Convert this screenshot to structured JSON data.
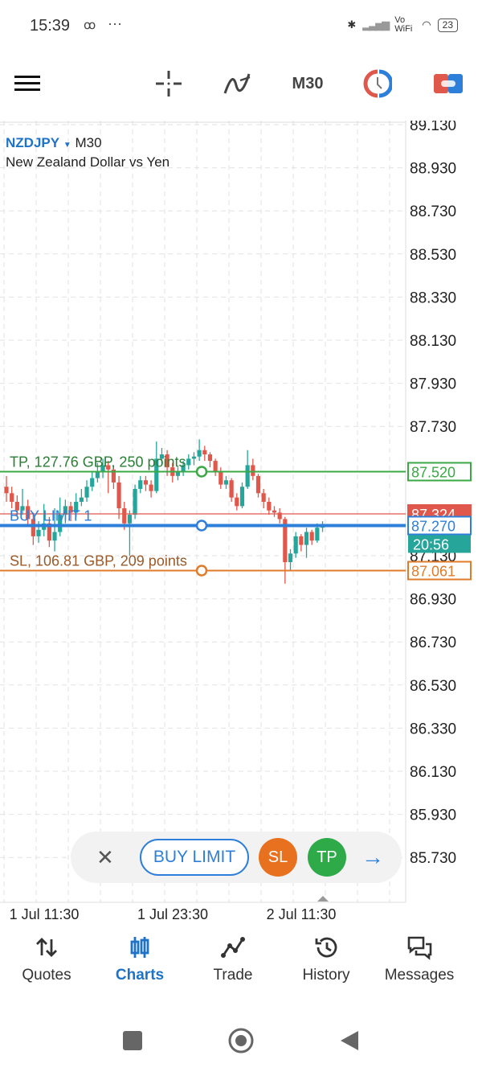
{
  "status_bar": {
    "time": "15:39",
    "voicemail": "ꝏ",
    "more": "···",
    "vowifi": "Vo WiFi",
    "battery": "23"
  },
  "toolbar": {
    "timeframe": "M30",
    "icons": [
      "menu-icon",
      "crosshair-icon",
      "indicators-icon",
      "timeframe",
      "clock-icon",
      "trade-toggle-icon"
    ]
  },
  "chart": {
    "symbol": "NZDJPY",
    "timeframe": "M30",
    "description": "New Zealand Dollar vs Yen",
    "price_ticks": [
      "89.130",
      "88.930",
      "88.730",
      "88.530",
      "88.330",
      "88.130",
      "87.930",
      "87.730",
      "87.130",
      "86.930",
      "86.730",
      "86.530",
      "86.330",
      "86.130",
      "85.930",
      "85.730"
    ],
    "time_ticks": [
      "1 Jul 11:30",
      "1 Jul 23:30",
      "2 Jul 11:30"
    ],
    "tp": {
      "label": "TP, 127.76 GBP, 250 points",
      "price": "87.520",
      "color": "#3aa845"
    },
    "bid": {
      "price": "87.324",
      "color": "#e0574c"
    },
    "order": {
      "label": "BUY LIMIT 1",
      "price": "87.270",
      "color": "#2d7fd9"
    },
    "countdown": "20:56",
    "sl": {
      "label": "SL, 106.81 GBP, 209 points",
      "price": "87.061",
      "color": "#e07b2a"
    },
    "colors": {
      "bull": "#26a69a",
      "bear": "#e0574c",
      "fractal": "#6a1fa8"
    }
  },
  "chart_data": {
    "type": "candlestick",
    "ylim": [
      85.6,
      89.15
    ],
    "candles_ohlc": [
      [
        87.45,
        87.5,
        87.38,
        87.42
      ],
      [
        87.42,
        87.45,
        87.35,
        87.38
      ],
      [
        87.38,
        87.41,
        87.31,
        87.34
      ],
      [
        87.34,
        87.44,
        87.32,
        87.36
      ],
      [
        87.36,
        87.39,
        87.27,
        87.3
      ],
      [
        87.3,
        87.33,
        87.18,
        87.22
      ],
      [
        87.22,
        87.29,
        87.19,
        87.25
      ],
      [
        87.25,
        87.37,
        87.22,
        87.28
      ],
      [
        87.28,
        87.31,
        87.17,
        87.2
      ],
      [
        87.2,
        87.35,
        87.15,
        87.24
      ],
      [
        87.24,
        87.4,
        87.22,
        87.32
      ],
      [
        87.32,
        87.39,
        87.28,
        87.36
      ],
      [
        87.36,
        87.38,
        87.29,
        87.33
      ],
      [
        87.33,
        87.42,
        87.31,
        87.38
      ],
      [
        87.38,
        87.44,
        87.36,
        87.4
      ],
      [
        87.4,
        87.48,
        87.38,
        87.45
      ],
      [
        87.45,
        87.52,
        87.43,
        87.49
      ],
      [
        87.49,
        87.56,
        87.47,
        87.52
      ],
      [
        87.52,
        87.58,
        87.49,
        87.55
      ],
      [
        87.55,
        87.57,
        87.42,
        87.53
      ],
      [
        87.53,
        87.55,
        87.44,
        87.47
      ],
      [
        87.47,
        87.5,
        87.3,
        87.35
      ],
      [
        87.35,
        87.38,
        87.25,
        87.28
      ],
      [
        87.28,
        87.34,
        87.13,
        87.32
      ],
      [
        87.32,
        87.46,
        87.3,
        87.44
      ],
      [
        87.44,
        87.5,
        87.42,
        87.48
      ],
      [
        87.48,
        87.5,
        87.43,
        87.46
      ],
      [
        87.46,
        87.48,
        87.4,
        87.43
      ],
      [
        87.43,
        87.66,
        87.42,
        87.58
      ],
      [
        87.58,
        87.63,
        87.55,
        87.6
      ],
      [
        87.6,
        87.62,
        87.5,
        87.54
      ],
      [
        87.54,
        87.56,
        87.47,
        87.5
      ],
      [
        87.5,
        87.54,
        87.48,
        87.52
      ],
      [
        87.52,
        87.57,
        87.5,
        87.55
      ],
      [
        87.55,
        87.6,
        87.53,
        87.58
      ],
      [
        87.58,
        87.61,
        87.55,
        87.59
      ],
      [
        87.59,
        87.67,
        87.57,
        87.62
      ],
      [
        87.62,
        87.64,
        87.57,
        87.6
      ],
      [
        87.6,
        87.61,
        87.54,
        87.57
      ],
      [
        87.57,
        87.58,
        87.5,
        87.52
      ],
      [
        87.52,
        87.54,
        87.44,
        87.46
      ],
      [
        87.46,
        87.5,
        87.44,
        87.48
      ],
      [
        87.48,
        87.49,
        87.38,
        87.4
      ],
      [
        87.4,
        87.42,
        87.34,
        87.36
      ],
      [
        87.36,
        87.47,
        87.35,
        87.45
      ],
      [
        87.45,
        87.62,
        87.44,
        87.55
      ],
      [
        87.55,
        87.58,
        87.48,
        87.5
      ],
      [
        87.5,
        87.51,
        87.4,
        87.42
      ],
      [
        87.42,
        87.44,
        87.35,
        87.38
      ],
      [
        87.38,
        87.4,
        87.32,
        87.34
      ],
      [
        87.34,
        87.36,
        87.31,
        87.33
      ],
      [
        87.33,
        87.35,
        87.28,
        87.3
      ],
      [
        87.3,
        87.31,
        87.0,
        87.1
      ],
      [
        87.1,
        87.16,
        87.06,
        87.14
      ],
      [
        87.14,
        87.24,
        87.12,
        87.22
      ],
      [
        87.22,
        87.23,
        87.15,
        87.18
      ],
      [
        87.18,
        87.26,
        87.12,
        87.24
      ],
      [
        87.24,
        87.25,
        87.18,
        87.2
      ],
      [
        87.2,
        87.28,
        87.19,
        87.26
      ],
      [
        87.26,
        87.29,
        87.24,
        87.27
      ]
    ],
    "levels": {
      "tp": 87.52,
      "bid": 87.324,
      "buy_limit": 87.27,
      "sl": 87.061
    },
    "grid": true
  },
  "trade_panel": {
    "order_type": "BUY LIMIT",
    "sl": "SL",
    "tp": "TP",
    "sl_color": "#e8711f",
    "tp_color": "#2eaa48"
  },
  "bottom_nav": [
    {
      "label": "Quotes",
      "icon": "quotes-icon"
    },
    {
      "label": "Charts",
      "icon": "charts-icon",
      "active": true
    },
    {
      "label": "Trade",
      "icon": "trade-icon"
    },
    {
      "label": "History",
      "icon": "history-icon"
    },
    {
      "label": "Messages",
      "icon": "messages-icon"
    }
  ]
}
